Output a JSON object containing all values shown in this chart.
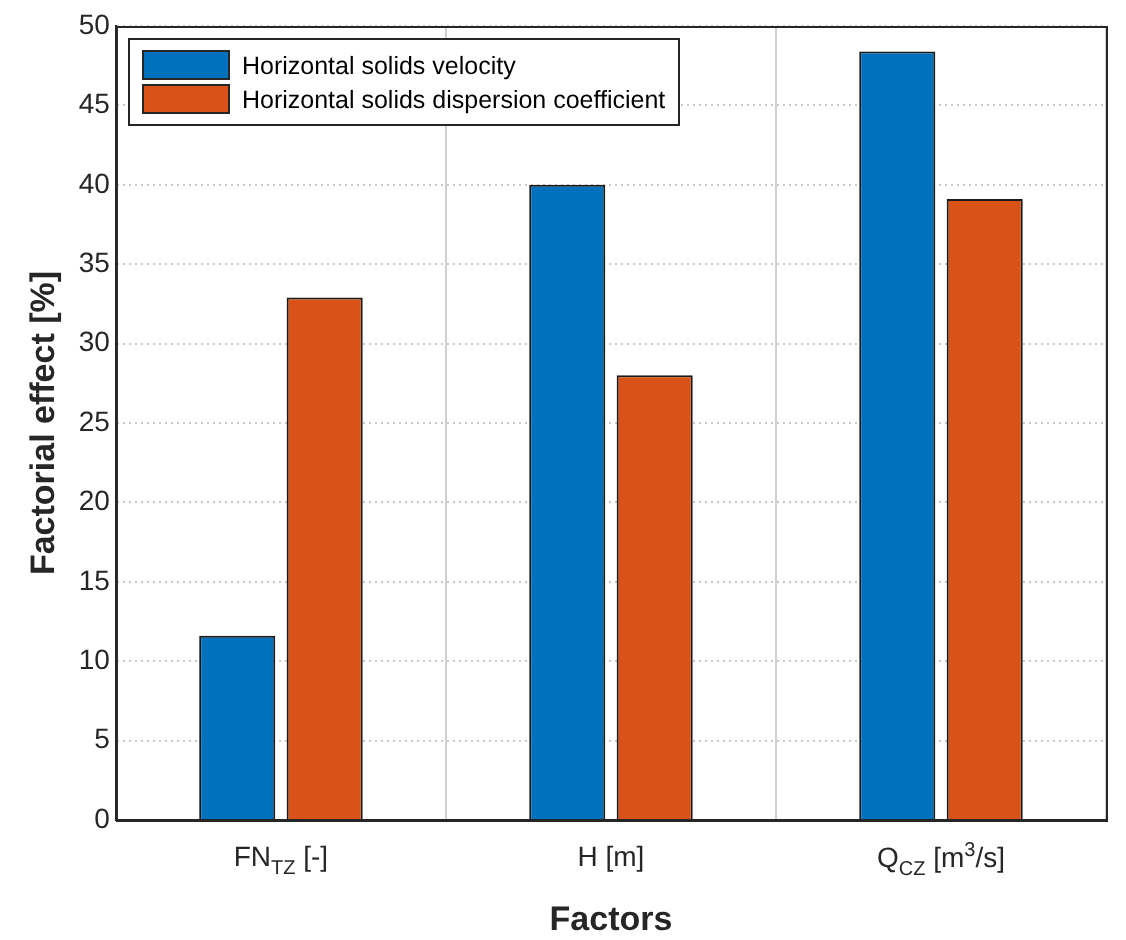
{
  "chart_data": {
    "type": "bar",
    "xlabel": "Factors",
    "ylabel": "Factorial effect [%]",
    "categories": [
      "FN$_{TZ}$ [-]",
      "H [m]",
      "Q$_{CZ}$ [m$^{3}$/s]"
    ],
    "series": [
      {
        "name": "Horizontal solids velocity",
        "color": "#0072bd",
        "values": [
          11.6,
          40,
          48.4
        ]
      },
      {
        "name": "Horizontal solids dispersion coefficient",
        "color": "#d95319",
        "values": [
          32.9,
          28,
          39.1
        ]
      }
    ],
    "ylim": [
      0,
      50
    ],
    "yticks": [
      0,
      5,
      10,
      15,
      20,
      25,
      30,
      35,
      40,
      45,
      50
    ],
    "grid": true,
    "legend": "top left"
  }
}
